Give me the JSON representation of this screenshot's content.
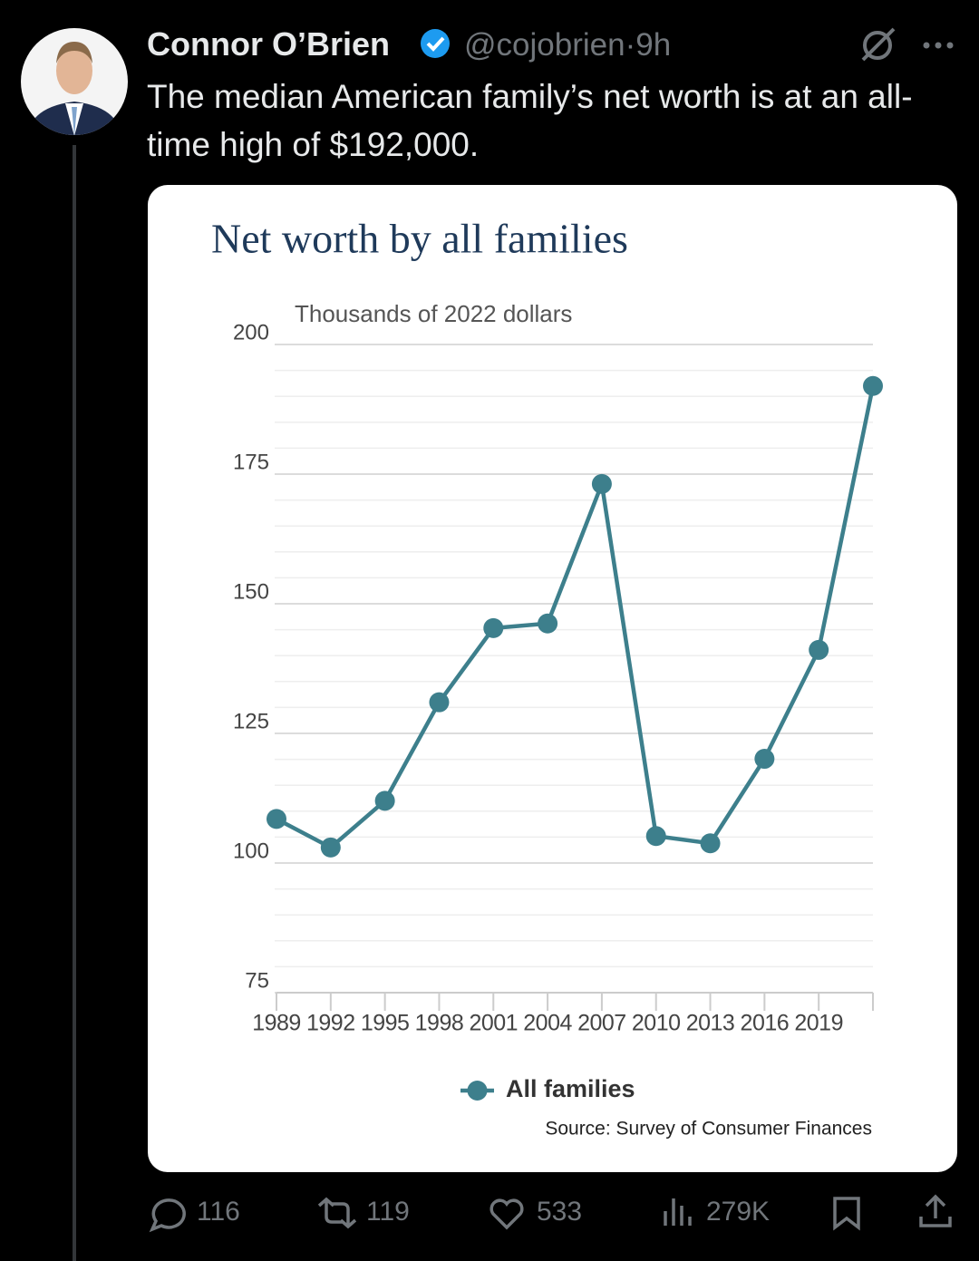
{
  "tweet": {
    "author": "Connor O’Brien",
    "handle": "@cojobrien",
    "separator": "·",
    "time": "9h",
    "text": "The median American family’s net worth is at an all-time high of $192,000.",
    "replies": "116",
    "reposts": "119",
    "likes": "533",
    "views": "279K"
  },
  "chart_data": {
    "type": "line",
    "title": "Net worth by all families",
    "subtitle": "Thousands of 2022 dollars",
    "categories": [
      "1989",
      "1992",
      "1995",
      "1998",
      "2001",
      "2004",
      "2007",
      "2010",
      "2013",
      "2016",
      "2019",
      null
    ],
    "series": [
      {
        "name": "All families",
        "color": "#3d7f8c",
        "values": [
          108.5,
          103,
          112,
          131,
          145.3,
          146.2,
          173.1,
          105.2,
          103.8,
          120.1,
          141.1,
          192
        ]
      }
    ],
    "ylim": [
      75,
      200
    ],
    "yticks": [
      75,
      100,
      125,
      150,
      175,
      200
    ],
    "minor_yticks": [
      80,
      85,
      90,
      95,
      105,
      110,
      115,
      120,
      130,
      135,
      140,
      145,
      155,
      160,
      165,
      170,
      180,
      185,
      190,
      195
    ],
    "grid": true,
    "legend": "bottom",
    "source": "Source: Survey of Consumer Finances"
  }
}
